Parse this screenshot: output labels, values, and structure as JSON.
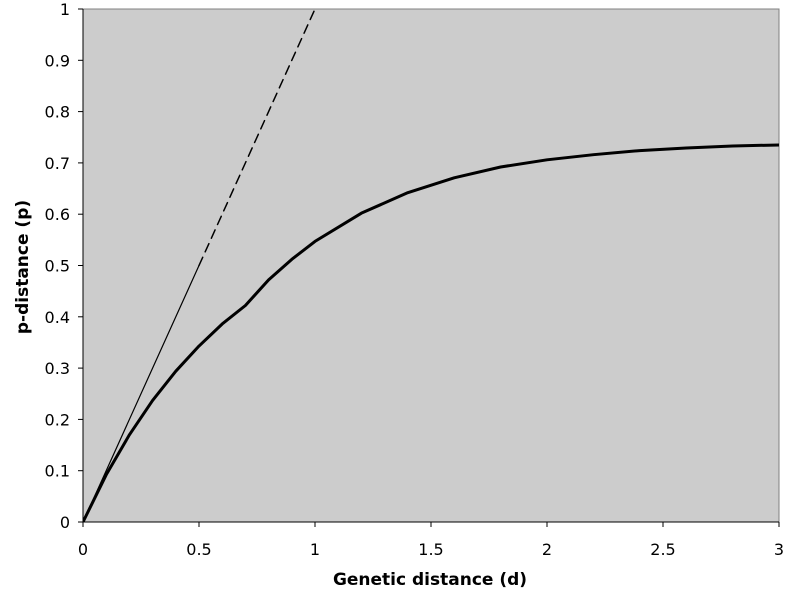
{
  "chart_data": {
    "type": "line",
    "title": "",
    "xlabel": "Genetic distance (d)",
    "ylabel": "p-distance (p)",
    "xlim": [
      0,
      3
    ],
    "ylim": [
      0,
      1
    ],
    "x_ticks": [
      "0",
      "0.5",
      "1",
      "1.5",
      "2",
      "2.5",
      "3"
    ],
    "y_ticks": [
      "0",
      "0.1",
      "0.2",
      "0.3",
      "0.4",
      "0.5",
      "0.6",
      "0.7",
      "0.8",
      "0.9",
      "1"
    ],
    "grid": false,
    "legend": "none",
    "plot_background": "#cccccc",
    "series": [
      {
        "style": "solid-thick",
        "color": "#000000",
        "x": [
          0,
          0.1,
          0.2,
          0.3,
          0.4,
          0.5,
          0.6,
          0.7,
          0.8,
          0.9,
          1.0,
          1.2,
          1.4,
          1.6,
          1.8,
          2.0,
          2.2,
          2.4,
          2.6,
          2.8,
          3.0
        ],
        "y": [
          0,
          0.092,
          0.17,
          0.237,
          0.294,
          0.343,
          0.386,
          0.422,
          0.472,
          0.512,
          0.547,
          0.602,
          0.642,
          0.671,
          0.692,
          0.706,
          0.716,
          0.724,
          0.729,
          0.733,
          0.735
        ]
      },
      {
        "style": "solid-thin",
        "color": "#000000",
        "x": [
          0,
          0.5
        ],
        "y": [
          0,
          0.5
        ]
      },
      {
        "style": "dashed",
        "color": "#000000",
        "x": [
          0.5,
          1.0
        ],
        "y": [
          0.5,
          1.0
        ]
      }
    ]
  }
}
